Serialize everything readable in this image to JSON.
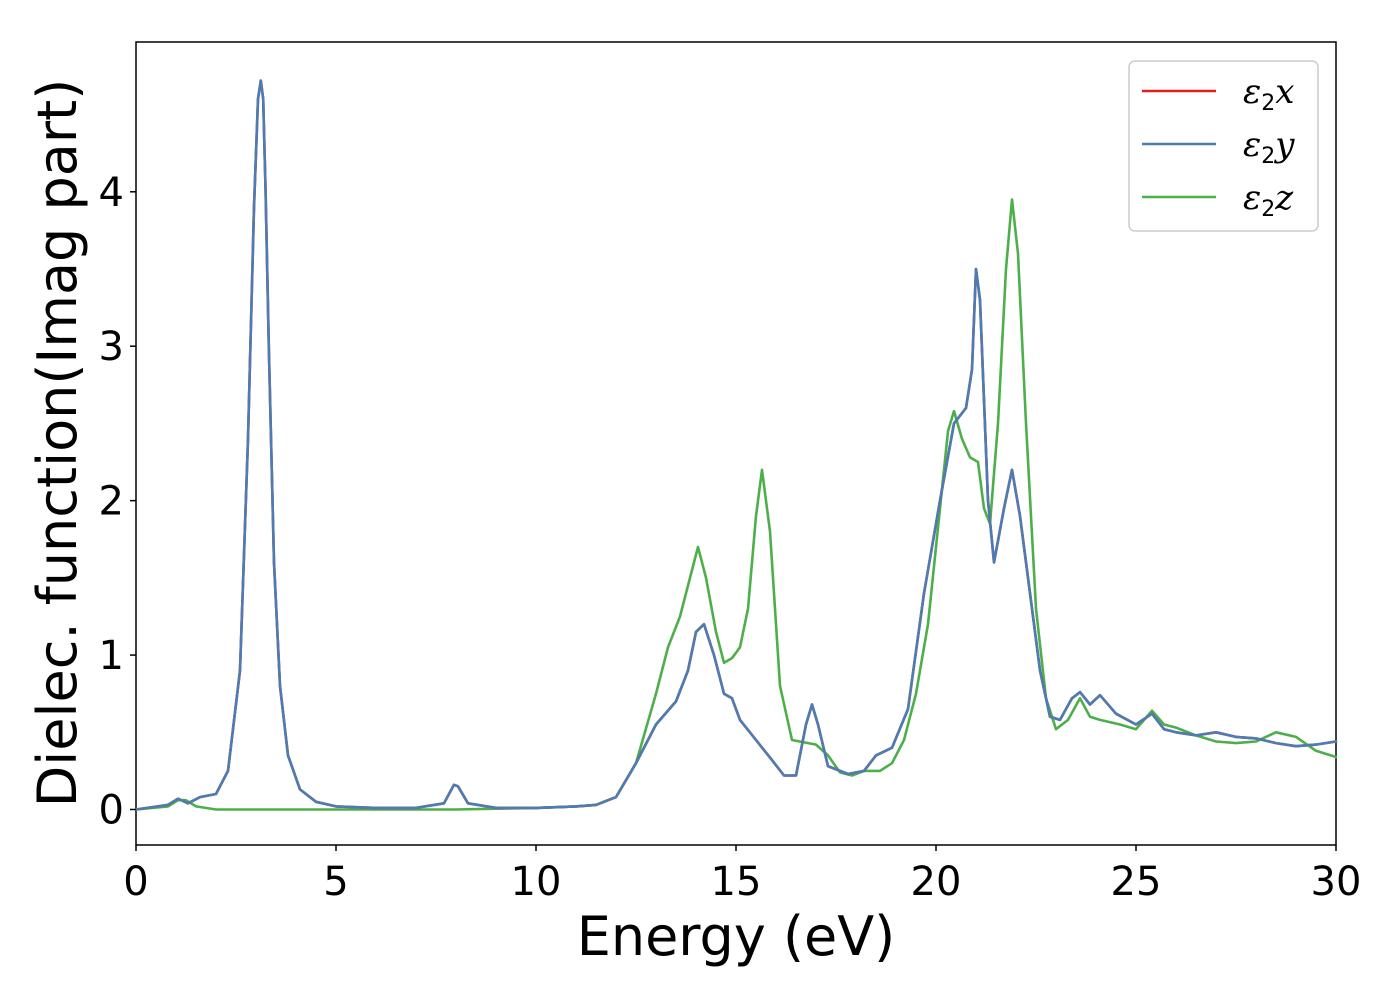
{
  "chart_data": {
    "type": "line",
    "title": "",
    "xlabel": "Energy (eV)",
    "ylabel": "Dielec. function(Imag part)",
    "xlim": [
      0,
      30
    ],
    "ylim": [
      -0.23,
      4.97
    ],
    "xticks": [
      0,
      5,
      10,
      15,
      20,
      25,
      30
    ],
    "yticks": [
      0,
      1,
      2,
      3,
      4
    ],
    "grid": false,
    "legend_position": "top-right",
    "legend": [
      {
        "base": "ε",
        "sub": "2",
        "axis": "x",
        "color": "#e41a1c"
      },
      {
        "base": "ε",
        "sub": "2",
        "axis": "y",
        "color": "#4a7db3"
      },
      {
        "base": "ε",
        "sub": "2",
        "axis": "z",
        "color": "#4daf4a"
      }
    ],
    "series": [
      {
        "name": "ε2x",
        "color": "#e41a1c",
        "x": [
          0,
          0.8,
          1.05,
          1.3,
          1.6,
          2.0,
          2.3,
          2.6,
          2.8,
          2.95,
          3.05,
          3.12,
          3.18,
          3.24,
          3.32,
          3.45,
          3.6,
          3.8,
          4.1,
          4.5,
          5,
          6,
          7,
          7.7,
          7.95,
          8.05,
          8.3,
          9,
          10,
          11,
          11.5,
          12,
          12.5,
          13,
          13.5,
          13.8,
          14.0,
          14.2,
          14.45,
          14.7,
          14.9,
          15.1,
          15.5,
          15.9,
          16.2,
          16.5,
          16.75,
          16.9,
          17.05,
          17.3,
          17.8,
          18.2,
          18.5,
          18.9,
          19.3,
          19.7,
          20.1,
          20.45,
          20.75,
          20.9,
          21.0,
          21.1,
          21.3,
          21.45,
          21.7,
          21.9,
          22.1,
          22.4,
          22.6,
          22.85,
          23.1,
          23.4,
          23.6,
          23.85,
          24.1,
          24.5,
          25,
          25.4,
          25.7,
          26,
          26.5,
          27,
          27.5,
          28,
          28.5,
          29,
          29.5,
          30
        ],
        "y": [
          0,
          0.03,
          0.07,
          0.04,
          0.08,
          0.1,
          0.25,
          0.9,
          2.4,
          3.9,
          4.6,
          4.72,
          4.6,
          4.0,
          3.0,
          1.6,
          0.8,
          0.35,
          0.13,
          0.05,
          0.02,
          0.01,
          0.01,
          0.04,
          0.16,
          0.15,
          0.04,
          0.01,
          0.01,
          0.02,
          0.03,
          0.08,
          0.3,
          0.55,
          0.7,
          0.9,
          1.15,
          1.2,
          1.0,
          0.75,
          0.72,
          0.58,
          0.45,
          0.32,
          0.22,
          0.22,
          0.55,
          0.68,
          0.55,
          0.28,
          0.23,
          0.25,
          0.35,
          0.4,
          0.65,
          1.4,
          2.0,
          2.5,
          2.6,
          2.85,
          3.5,
          3.3,
          2.0,
          1.6,
          1.95,
          2.2,
          1.9,
          1.3,
          0.9,
          0.6,
          0.58,
          0.72,
          0.76,
          0.68,
          0.74,
          0.62,
          0.55,
          0.62,
          0.52,
          0.5,
          0.48,
          0.5,
          0.47,
          0.46,
          0.43,
          0.41,
          0.42,
          0.44
        ]
      },
      {
        "name": "ε2y",
        "color": "#4a7db3",
        "x": [
          0,
          0.8,
          1.05,
          1.3,
          1.6,
          2.0,
          2.3,
          2.6,
          2.8,
          2.95,
          3.05,
          3.12,
          3.18,
          3.24,
          3.32,
          3.45,
          3.6,
          3.8,
          4.1,
          4.5,
          5,
          6,
          7,
          7.7,
          7.95,
          8.05,
          8.3,
          9,
          10,
          11,
          11.5,
          12,
          12.5,
          13,
          13.5,
          13.8,
          14.0,
          14.2,
          14.45,
          14.7,
          14.9,
          15.1,
          15.5,
          15.9,
          16.2,
          16.5,
          16.75,
          16.9,
          17.05,
          17.3,
          17.8,
          18.2,
          18.5,
          18.9,
          19.3,
          19.7,
          20.1,
          20.45,
          20.75,
          20.9,
          21.0,
          21.1,
          21.3,
          21.45,
          21.7,
          21.9,
          22.1,
          22.4,
          22.6,
          22.85,
          23.1,
          23.4,
          23.6,
          23.85,
          24.1,
          24.5,
          25,
          25.4,
          25.7,
          26,
          26.5,
          27,
          27.5,
          28,
          28.5,
          29,
          29.5,
          30
        ],
        "y": [
          0,
          0.03,
          0.07,
          0.04,
          0.08,
          0.1,
          0.25,
          0.9,
          2.4,
          3.9,
          4.6,
          4.72,
          4.6,
          4.0,
          3.0,
          1.6,
          0.8,
          0.35,
          0.13,
          0.05,
          0.02,
          0.01,
          0.01,
          0.04,
          0.16,
          0.15,
          0.04,
          0.01,
          0.01,
          0.02,
          0.03,
          0.08,
          0.3,
          0.55,
          0.7,
          0.9,
          1.15,
          1.2,
          1.0,
          0.75,
          0.72,
          0.58,
          0.45,
          0.32,
          0.22,
          0.22,
          0.55,
          0.68,
          0.55,
          0.28,
          0.23,
          0.25,
          0.35,
          0.4,
          0.65,
          1.4,
          2.0,
          2.5,
          2.6,
          2.85,
          3.5,
          3.3,
          2.0,
          1.6,
          1.95,
          2.2,
          1.9,
          1.3,
          0.9,
          0.6,
          0.58,
          0.72,
          0.76,
          0.68,
          0.74,
          0.62,
          0.55,
          0.62,
          0.52,
          0.5,
          0.48,
          0.5,
          0.47,
          0.46,
          0.43,
          0.41,
          0.42,
          0.44
        ]
      },
      {
        "name": "ε2z",
        "color": "#4daf4a",
        "x": [
          0,
          0.8,
          1.05,
          1.25,
          1.5,
          2.0,
          3,
          5,
          8,
          10,
          11,
          11.5,
          12,
          12.5,
          13,
          13.3,
          13.6,
          13.85,
          14.05,
          14.25,
          14.5,
          14.7,
          14.9,
          15.1,
          15.3,
          15.5,
          15.65,
          15.85,
          16.1,
          16.4,
          17.0,
          17.3,
          17.6,
          17.9,
          18.2,
          18.6,
          18.9,
          19.2,
          19.5,
          19.8,
          20.1,
          20.3,
          20.45,
          20.65,
          20.85,
          21.05,
          21.2,
          21.35,
          21.55,
          21.75,
          21.9,
          22.05,
          22.25,
          22.5,
          22.75,
          23.0,
          23.3,
          23.6,
          23.85,
          24.1,
          24.6,
          25.0,
          25.4,
          25.7,
          26,
          26.5,
          27,
          27.5,
          28,
          28.5,
          29,
          29.5,
          30
        ],
        "y": [
          0,
          0.02,
          0.06,
          0.06,
          0.02,
          0.0,
          0.0,
          0.0,
          0.0,
          0.01,
          0.02,
          0.03,
          0.08,
          0.3,
          0.75,
          1.05,
          1.25,
          1.5,
          1.7,
          1.5,
          1.15,
          0.95,
          0.98,
          1.05,
          1.3,
          1.9,
          2.2,
          1.8,
          0.8,
          0.45,
          0.42,
          0.35,
          0.24,
          0.22,
          0.25,
          0.25,
          0.3,
          0.45,
          0.75,
          1.2,
          1.95,
          2.45,
          2.58,
          2.4,
          2.28,
          2.25,
          1.95,
          1.85,
          2.5,
          3.5,
          3.95,
          3.6,
          2.5,
          1.3,
          0.72,
          0.52,
          0.58,
          0.72,
          0.6,
          0.58,
          0.55,
          0.52,
          0.64,
          0.55,
          0.53,
          0.48,
          0.44,
          0.43,
          0.44,
          0.5,
          0.47,
          0.38,
          0.34
        ]
      }
    ]
  }
}
